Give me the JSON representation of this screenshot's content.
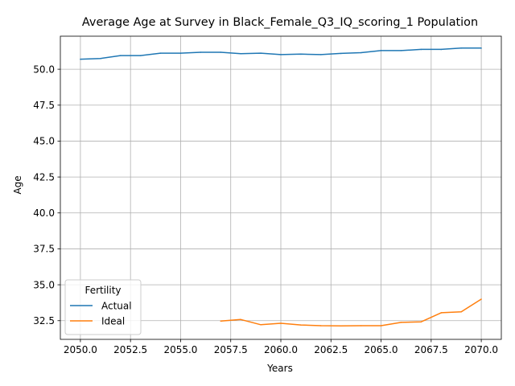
{
  "chart_data": {
    "type": "line",
    "title": "Average Age at Survey in Black_Female_Q3_IQ_scoring_1 Population",
    "xlabel": "Years",
    "ylabel": "Age",
    "xlim": [
      2049,
      2071
    ],
    "ylim": [
      31.2,
      52.3
    ],
    "x_ticks": [
      2050.0,
      2052.5,
      2055.0,
      2057.5,
      2060.0,
      2062.5,
      2065.0,
      2067.5,
      2070.0
    ],
    "x_tick_labels": [
      "2050.0",
      "2052.5",
      "2055.0",
      "2057.5",
      "2060.0",
      "2062.5",
      "2065.0",
      "2067.5",
      "2070.0"
    ],
    "y_ticks": [
      32.5,
      35.0,
      37.5,
      40.0,
      42.5,
      45.0,
      47.5,
      50.0
    ],
    "y_tick_labels": [
      "32.5",
      "35.0",
      "37.5",
      "40.0",
      "42.5",
      "45.0",
      "47.5",
      "50.0"
    ],
    "grid": true,
    "legend": {
      "title": "Fertility",
      "placement": "lower-left"
    },
    "series": [
      {
        "name": "Actual",
        "color": "#1f77b4",
        "x": [
          2050,
          2051,
          2052,
          2053,
          2054,
          2055,
          2056,
          2057,
          2058,
          2059,
          2060,
          2061,
          2062,
          2063,
          2064,
          2065,
          2066,
          2067,
          2068,
          2069,
          2070
        ],
        "y": [
          50.7,
          50.75,
          50.95,
          50.95,
          51.12,
          51.12,
          51.18,
          51.18,
          51.08,
          51.12,
          51.02,
          51.05,
          51.02,
          51.1,
          51.15,
          51.3,
          51.3,
          51.38,
          51.38,
          51.47,
          51.47
        ]
      },
      {
        "name": "Ideal",
        "color": "#ff7f0e",
        "x": [
          2057,
          2058,
          2059,
          2060,
          2061,
          2062,
          2063,
          2064,
          2065,
          2066,
          2067,
          2068,
          2069,
          2070
        ],
        "y": [
          32.47,
          32.58,
          32.22,
          32.32,
          32.2,
          32.15,
          32.14,
          32.15,
          32.15,
          32.38,
          32.42,
          33.05,
          33.12,
          34.0
        ]
      }
    ]
  }
}
